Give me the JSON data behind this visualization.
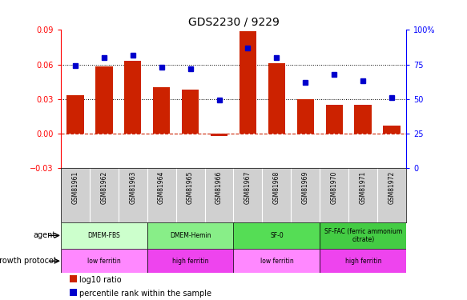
{
  "title": "GDS2230 / 9229",
  "samples": [
    "GSM81961",
    "GSM81962",
    "GSM81963",
    "GSM81964",
    "GSM81965",
    "GSM81966",
    "GSM81967",
    "GSM81968",
    "GSM81969",
    "GSM81970",
    "GSM81971",
    "GSM81972"
  ],
  "log10_ratio": [
    0.033,
    0.058,
    0.063,
    0.04,
    0.038,
    -0.002,
    0.089,
    0.061,
    0.03,
    0.025,
    0.025,
    0.007
  ],
  "percentile_rank": [
    74,
    80,
    82,
    73,
    72,
    49,
    87,
    80,
    62,
    68,
    63,
    51
  ],
  "ylim_left": [
    -0.03,
    0.09
  ],
  "ylim_right": [
    0,
    100
  ],
  "yticks_left": [
    -0.03,
    0,
    0.03,
    0.06,
    0.09
  ],
  "yticks_right": [
    0,
    25,
    50,
    75,
    100
  ],
  "hlines": [
    0.03,
    0.06
  ],
  "agent_groups": [
    {
      "label": "DMEM-FBS",
      "start": 0,
      "end": 3,
      "color": "#ccffcc"
    },
    {
      "label": "DMEM-Hemin",
      "start": 3,
      "end": 6,
      "color": "#88ee88"
    },
    {
      "label": "SF-0",
      "start": 6,
      "end": 9,
      "color": "#55dd55"
    },
    {
      "label": "SF-FAC (ferric ammonium\ncitrate)",
      "start": 9,
      "end": 12,
      "color": "#44cc44"
    }
  ],
  "growth_groups": [
    {
      "label": "low ferritin",
      "start": 0,
      "end": 3,
      "color": "#ff88ff"
    },
    {
      "label": "high ferritin",
      "start": 3,
      "end": 6,
      "color": "#ee44ee"
    },
    {
      "label": "low ferritin",
      "start": 6,
      "end": 9,
      "color": "#ff88ff"
    },
    {
      "label": "high ferritin",
      "start": 9,
      "end": 12,
      "color": "#ee44ee"
    }
  ],
  "bar_color": "#cc2200",
  "dot_color": "#0000cc",
  "dashed_line_color": "#cc2200",
  "background_color": "#ffffff",
  "tick_label_bg": "#d0d0d0",
  "legend_items": [
    {
      "label": "log10 ratio",
      "color": "#cc2200"
    },
    {
      "label": "percentile rank within the sample",
      "color": "#0000cc"
    }
  ]
}
